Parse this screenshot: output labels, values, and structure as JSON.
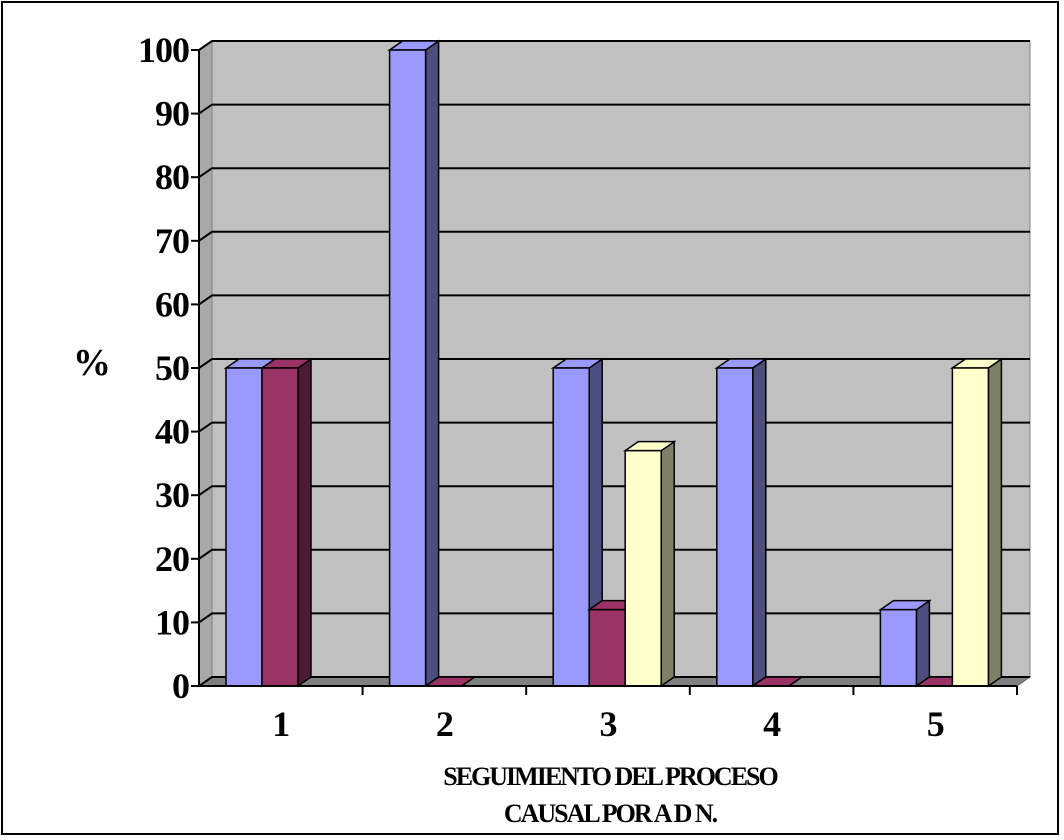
{
  "chart_data": {
    "type": "bar",
    "style": "3d-clustered-column",
    "categories": [
      "1",
      "2",
      "3",
      "4",
      "5"
    ],
    "series": [
      {
        "values": [
          50,
          100,
          50,
          50,
          12
        ],
        "color": "#9999ff",
        "color_side": "#4d4d80"
      },
      {
        "values": [
          50,
          0,
          12,
          0,
          0
        ],
        "color": "#993366",
        "color_side": "#4d1a33"
      },
      {
        "values": [
          null,
          null,
          37,
          null,
          50
        ],
        "color": "#ffffcc",
        "color_side": "#808066"
      }
    ],
    "yticks": [
      "0",
      "10",
      "20",
      "30",
      "40",
      "50",
      "60",
      "70",
      "80",
      "90",
      "100"
    ],
    "ylim": [
      0,
      100
    ],
    "ylabel": "%",
    "xlabel_lines": [
      "SEGUIMIENTO DEL PROCESO",
      "CAUSAL POR A D N."
    ],
    "grid": true,
    "legend": "none",
    "plot_background": "#c0c0c0"
  }
}
